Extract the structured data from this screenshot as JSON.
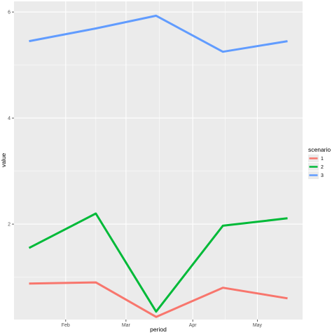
{
  "chart_data": {
    "type": "line",
    "xlabel": "period",
    "ylabel": "value",
    "x_tick_labels": [
      "Feb",
      "Mar",
      "Apr",
      "May"
    ],
    "x_tick_dates": [
      "2022-02-01",
      "2022-03-01",
      "2022-04-01",
      "2022-05-01"
    ],
    "x": [
      "2022-01-15",
      "2022-02-15",
      "2022-03-15",
      "2022-04-15",
      "2022-05-15"
    ],
    "xlim": [
      "2022-01-08",
      "2022-05-22"
    ],
    "y_ticks": [
      2,
      4,
      6
    ],
    "ylim": [
      0.2,
      6.2
    ],
    "grid": true,
    "legend": {
      "title": "scenario",
      "position": "right"
    },
    "series": [
      {
        "name": "1",
        "color": "#F8766D",
        "values": [
          0.88,
          0.9,
          0.25,
          0.8,
          0.6
        ]
      },
      {
        "name": "2",
        "color": "#00BA38",
        "values": [
          1.55,
          2.2,
          0.35,
          1.97,
          2.11
        ]
      },
      {
        "name": "3",
        "color": "#619CFF",
        "values": [
          5.45,
          5.69,
          5.93,
          5.25,
          5.45
        ]
      }
    ]
  }
}
